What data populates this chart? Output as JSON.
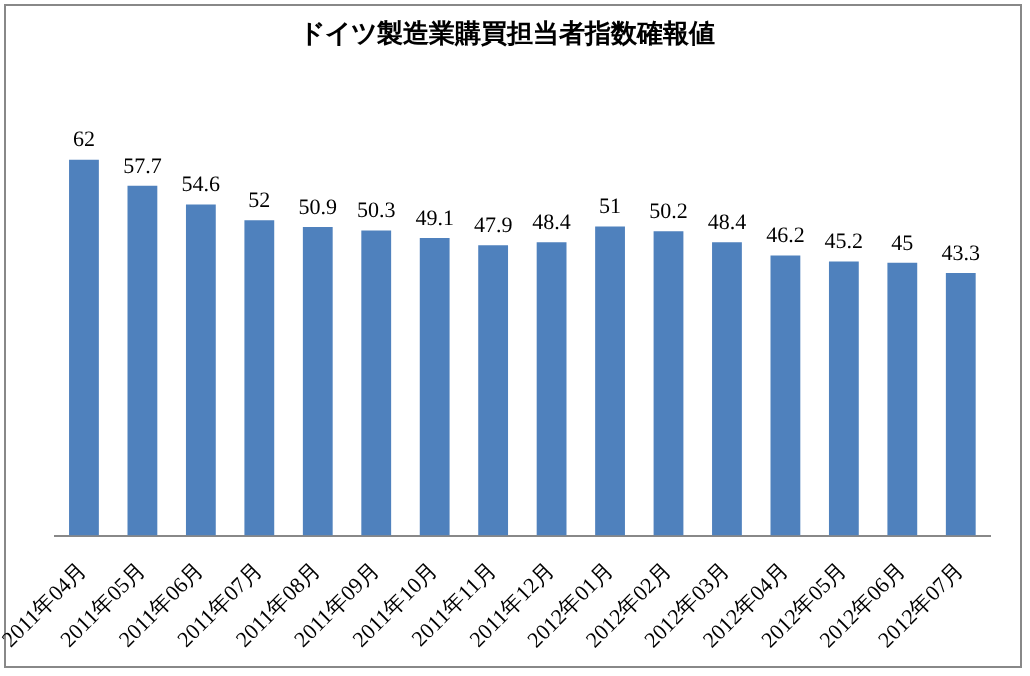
{
  "chart_data": {
    "type": "bar",
    "title": "ドイツ製造業購買担当者指数確報値",
    "categories": [
      "2011年04月",
      "2011年05月",
      "2011年06月",
      "2011年07月",
      "2011年08月",
      "2011年09月",
      "2011年10月",
      "2011年11月",
      "2011年12月",
      "2012年01月",
      "2012年02月",
      "2012年03月",
      "2012年04月",
      "2012年05月",
      "2012年06月",
      "2012年07月"
    ],
    "values": [
      62,
      57.7,
      54.6,
      52,
      50.9,
      50.3,
      49.1,
      47.9,
      48.4,
      51,
      50.2,
      48.4,
      46.2,
      45.2,
      45,
      43.3
    ],
    "color": "#4f81bd",
    "data_labels": true,
    "grid": false,
    "legend": false
  }
}
